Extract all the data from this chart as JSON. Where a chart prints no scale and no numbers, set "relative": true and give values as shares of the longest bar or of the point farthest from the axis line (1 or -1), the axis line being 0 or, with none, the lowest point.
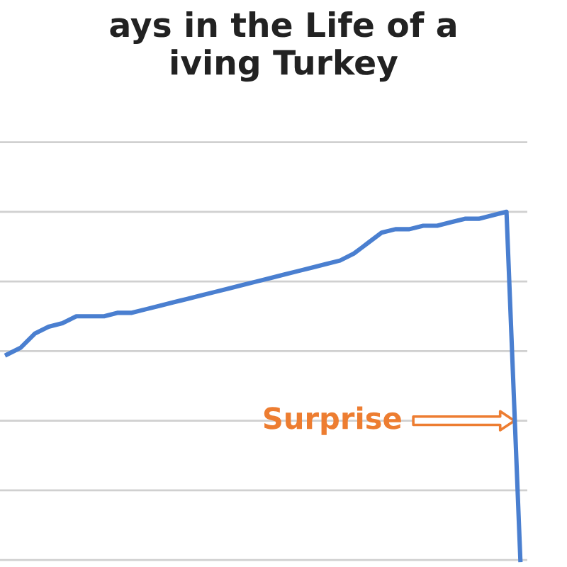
{
  "chart_data": {
    "type": "line",
    "title": "ays in the Life of a\niving Turkey",
    "relative": true,
    "grid": "y",
    "marker": "none",
    "line_style": "solid",
    "categories": [
      null,
      null,
      null,
      null,
      null,
      null,
      null,
      null,
      null,
      null,
      null,
      null,
      null,
      null,
      null,
      null,
      null,
      null,
      null,
      null,
      null,
      null,
      null,
      null,
      null,
      null,
      null,
      null,
      null,
      null,
      null,
      null,
      null,
      null,
      null,
      null,
      null,
      null
    ],
    "series": [
      {
        "color": "#4a7fd0",
        "values": [
          0.59,
          0.61,
          0.65,
          0.67,
          0.68,
          0.7,
          0.7,
          0.7,
          0.71,
          0.71,
          0.72,
          0.73,
          0.74,
          0.75,
          0.76,
          0.77,
          0.78,
          0.79,
          0.8,
          0.81,
          0.82,
          0.83,
          0.84,
          0.85,
          0.86,
          0.88,
          0.91,
          0.94,
          0.95,
          0.95,
          0.96,
          0.96,
          0.97,
          0.98,
          0.98,
          0.99,
          1.0,
          0
        ]
      }
    ],
    "annotations": [
      "Surprise"
    ]
  }
}
